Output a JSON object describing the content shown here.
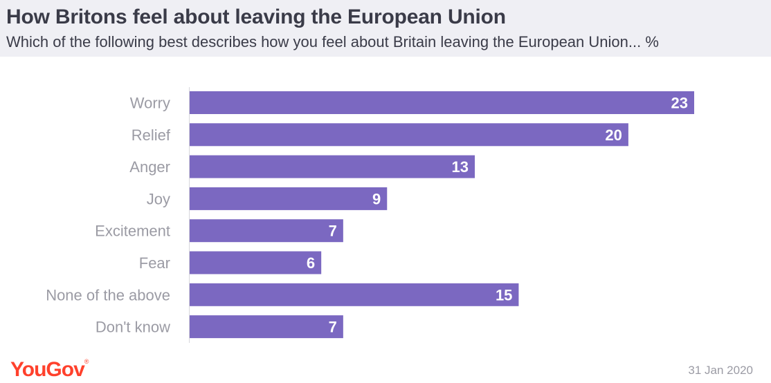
{
  "header": {
    "title": "How Britons feel about leaving the European Union",
    "subtitle": "Which of the following best describes how you feel about Britain leaving the European Union... %"
  },
  "chart_data": {
    "type": "bar",
    "orientation": "horizontal",
    "categories": [
      "Worry",
      "Relief",
      "Anger",
      "Joy",
      "Excitement",
      "Fear",
      "None of the above",
      "Don't know"
    ],
    "values": [
      23,
      20,
      13,
      9,
      7,
      6,
      15,
      7
    ],
    "xlim": [
      0,
      23
    ],
    "unit": "%",
    "grid": false,
    "bar_color": "#7b68c1",
    "label_color": "#9b9ba4",
    "value_label_color": "#ffffff"
  },
  "footer": {
    "brand": "YouGov",
    "brand_mark": "®",
    "brand_color": "#ff412c",
    "date": "31 Jan 2020"
  }
}
